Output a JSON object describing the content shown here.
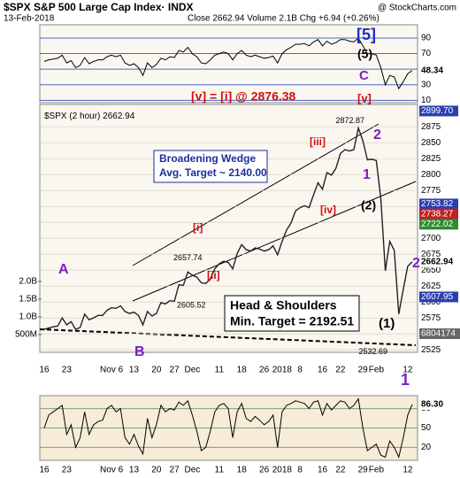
{
  "chart_data": [
    {
      "type": "line",
      "series": [
        {
          "color": "#000000",
          "values": [
            60,
            62,
            63,
            64,
            68,
            58,
            61,
            52,
            55,
            65,
            57,
            60,
            62,
            62,
            66,
            68,
            66,
            68,
            58,
            55,
            57,
            52,
            42,
            58,
            52,
            56,
            64,
            62,
            66,
            65,
            74,
            72,
            78,
            70,
            66,
            58,
            57,
            62,
            68,
            70,
            72,
            70,
            62,
            70,
            74,
            68,
            66,
            68,
            66,
            64,
            65,
            67,
            58,
            70,
            75,
            78,
            82,
            82,
            83,
            80,
            85,
            88,
            80,
            86,
            82,
            84,
            88,
            88,
            86,
            85,
            90,
            80,
            70,
            70,
            68,
            52,
            30,
            42,
            40,
            25,
            34,
            44,
            48.34
          ]
        }
      ],
      "ylim": [
        7,
        107
      ],
      "yticks": [
        10,
        30,
        50,
        70,
        90
      ],
      "grid": true
    },
    {
      "type": "line",
      "title": "$SPX S&P 500 Large Cap Index· INDX",
      "watermark": "@ StockCharts.com",
      "date": "13-Feb-2018",
      "summary": "Close 2662.94 Volume 2.1B Chg +6.94 (+0.26%)",
      "categories": [
        "16",
        null,
        null,
        null,
        null,
        "23",
        null,
        null,
        null,
        null,
        null,
        null,
        null,
        null,
        null,
        "Nov 6",
        null,
        null,
        null,
        null,
        "13",
        null,
        null,
        null,
        null,
        "20",
        null,
        null,
        null,
        "27",
        null,
        null,
        null,
        "Dec",
        null,
        null,
        null,
        null,
        null,
        "11",
        null,
        null,
        null,
        null,
        "18",
        null,
        null,
        null,
        null,
        "26",
        null,
        null,
        null,
        "2018",
        null,
        null,
        null,
        "8",
        null,
        null,
        null,
        null,
        "16",
        null,
        null,
        null,
        "22",
        null,
        null,
        null,
        null,
        "29",
        null,
        null,
        "Feb",
        null,
        null,
        null,
        null,
        null,
        null,
        "12",
        null
      ],
      "series": [
        {
          "name": "$SPX (2 hour)",
          "color": "#222222",
          "values": [
            2557,
            2559,
            2561,
            2562,
            2575,
            2564,
            2569,
            2557,
            2560,
            2581,
            2572,
            2575,
            2579,
            2579,
            2587,
            2591,
            2590,
            2594,
            2585,
            2582,
            2584,
            2579,
            2564,
            2585,
            2578,
            2582,
            2599,
            2597,
            2602,
            2601,
            2627,
            2626,
            2647,
            2642,
            2639,
            2630,
            2629,
            2636,
            2652,
            2660,
            2664,
            2662,
            2652,
            2676,
            2690,
            2682,
            2680,
            2685,
            2683,
            2680,
            2682,
            2688,
            2674,
            2695,
            2713,
            2724,
            2743,
            2748,
            2751,
            2748,
            2768,
            2787,
            2777,
            2803,
            2799,
            2810,
            2833,
            2839,
            2837,
            2839,
            2873,
            2853,
            2823,
            2824,
            2822,
            2762,
            2649,
            2695,
            2681,
            2581,
            2620,
            2656,
            2662.94
          ]
        }
      ],
      "ylim": [
        2521,
        2910
      ],
      "yticks": [
        2525,
        2550,
        2575,
        2600,
        2625,
        2650,
        2675,
        2700,
        2725,
        2750,
        2775,
        2800,
        2825,
        2850,
        2875
      ],
      "y2lim": [
        0,
        7000000000
      ],
      "y2ticks": [
        {
          "value": 500000000,
          "label": "500M"
        },
        {
          "value": 1000000000,
          "label": "1.0B"
        },
        {
          "value": 1500000000,
          "label": "1.5B"
        },
        {
          "value": 2000000000,
          "label": "2.0B"
        }
      ],
      "overlay_values": [
        2899.7,
        2753.82,
        2738.27,
        2722.02,
        2607.95
      ],
      "overlay_value_labels": [
        "2899.70",
        null,
        null,
        null,
        null
      ],
      "overlay_colors": [
        "#2b3fb0",
        "#2b3fb0",
        "#c02020",
        "#2e8b2e",
        "#2b3fb0"
      ],
      "volume_last": 6804174,
      "price_labels": [
        2657.74,
        2605.52,
        2872.87,
        2532.69
      ],
      "annotations": [
        "[5]",
        "(5)",
        "C",
        "[v] = [i] @ 2876.38",
        "[v]",
        "Broadening Wedge",
        "Avg. Target ~ 2140.00",
        "Head & Shoulders",
        "Min. Target = 2192.51",
        "2",
        "1",
        "[iii]",
        "[iv]",
        "(2)",
        "2",
        "[i]",
        "[ii]",
        "A",
        "B",
        "(1)",
        "1"
      ],
      "grid": true
    },
    {
      "type": "line",
      "series": [
        {
          "color": "#000000",
          "values": [
            50,
            70,
            75,
            80,
            85,
            40,
            55,
            20,
            35,
            75,
            40,
            55,
            60,
            62,
            80,
            85,
            75,
            80,
            35,
            25,
            40,
            22,
            10,
            65,
            35,
            55,
            85,
            75,
            80,
            78,
            90,
            85,
            92,
            70,
            45,
            15,
            20,
            45,
            75,
            85,
            88,
            80,
            35,
            75,
            88,
            65,
            60,
            68,
            62,
            55,
            60,
            70,
            20,
            75,
            85,
            88,
            92,
            90,
            88,
            80,
            90,
            92,
            70,
            88,
            78,
            85,
            92,
            90,
            80,
            85,
            95,
            50,
            15,
            20,
            25,
            8,
            5,
            30,
            20,
            5,
            35,
            70,
            86.3
          ],
          "value_labels": [
            null,
            null,
            null,
            null,
            null,
            null,
            null,
            null,
            null,
            null,
            null,
            null,
            null,
            null,
            null,
            null,
            null,
            null,
            null,
            null,
            null,
            null,
            null,
            null,
            null,
            null,
            null,
            null,
            null,
            null,
            null,
            null,
            null,
            null,
            null,
            null,
            null,
            null,
            null,
            null,
            null,
            null,
            null,
            null,
            null,
            null,
            null,
            null,
            null,
            null,
            null,
            null,
            null,
            null,
            null,
            null,
            null,
            null,
            null,
            null,
            null,
            null,
            null,
            null,
            null,
            null,
            null,
            null,
            null,
            null,
            null,
            null,
            null,
            null,
            null,
            null,
            null,
            null,
            null,
            null,
            null,
            null,
            "86.30"
          ]
        }
      ],
      "ylim": [
        0,
        100
      ],
      "yticks": [
        20,
        50,
        80
      ],
      "grid": true
    }
  ]
}
